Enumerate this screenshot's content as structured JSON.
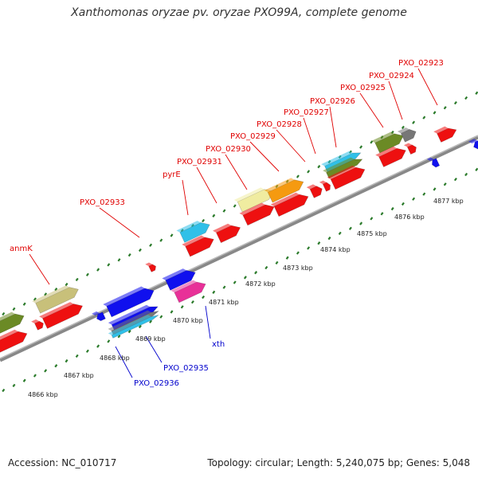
{
  "title": "Xanthomonas oryzae pv. oryzae PXO99A, complete genome",
  "footer": {
    "accession": "Accession: NC_010717",
    "summary": "Topology: circular; Length: 5,240,075 bp; Genes: 5,048"
  },
  "colors": {
    "forward_label": "#e00000",
    "reverse_label": "#0000cc",
    "tick": "#2a7a2a",
    "backbone": "#888888",
    "red_gene": "#ee1010",
    "blue_gene": "#1010ee",
    "olive_gene": "#6b8a25",
    "khaki_gene": "#c8c07a",
    "pale_yellow_gene": "#f0eca0",
    "orange_gene": "#f59a10",
    "cyan_gene": "#30c0e8",
    "magenta_gene": "#e83098",
    "gray_gene": "#777777"
  },
  "kbp_ticks": [
    "4866 kbp",
    "4867 kbp",
    "4868 kbp",
    "4869 kbp",
    "4870 kbp",
    "4871 kbp",
    "4872 kbp",
    "4873 kbp",
    "4874 kbp",
    "4875 kbp",
    "4876 kbp",
    "4877 kbp"
  ],
  "forward_labels": [
    "anmK",
    "PXO_02933",
    "pyrE",
    "PXO_02931",
    "PXO_02930",
    "PXO_02929",
    "PXO_02928",
    "PXO_02927",
    "PXO_02926",
    "PXO_02925",
    "PXO_02924",
    "PXO_02923"
  ],
  "reverse_labels": [
    "PXO_02936",
    "PXO_02935",
    "xth"
  ]
}
